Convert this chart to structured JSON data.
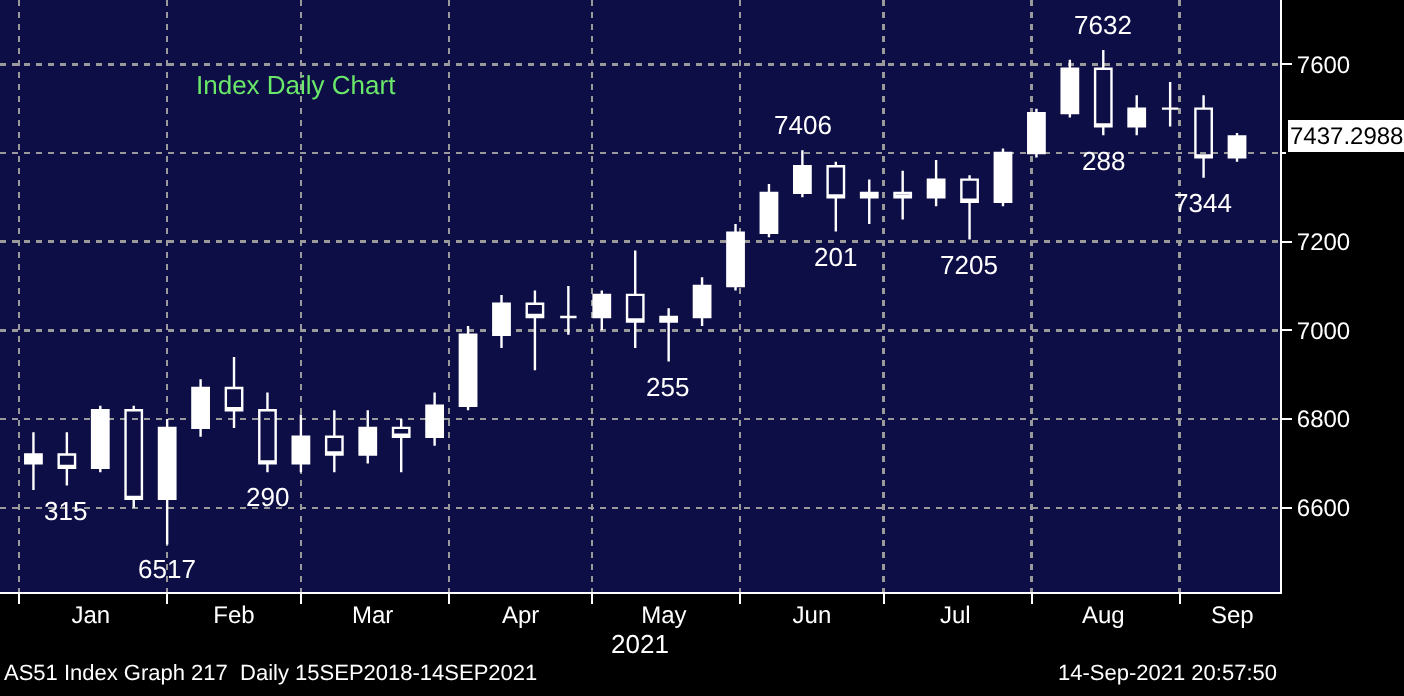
{
  "chart_data": {
    "type": "candlestick",
    "title": "Index Daily Chart",
    "xlabel": "2021",
    "x": [
      "2021-01-04",
      "2021-01-11",
      "2021-01-18",
      "2021-01-25",
      "2021-02-01",
      "2021-02-08",
      "2021-02-15",
      "2021-02-22",
      "2021-03-01",
      "2021-03-08",
      "2021-03-15",
      "2021-03-22",
      "2021-03-29",
      "2021-04-05",
      "2021-04-12",
      "2021-04-19",
      "2021-04-26",
      "2021-05-03",
      "2021-05-10",
      "2021-05-17",
      "2021-05-24",
      "2021-05-31",
      "2021-06-07",
      "2021-06-14",
      "2021-06-21",
      "2021-06-28",
      "2021-07-05",
      "2021-07-12",
      "2021-07-19",
      "2021-07-26",
      "2021-08-02",
      "2021-08-09",
      "2021-08-16",
      "2021-08-23",
      "2021-08-30",
      "2021-09-06",
      "2021-09-13"
    ],
    "ohlc": [
      [
        6700,
        6770,
        6640,
        6720
      ],
      [
        6720,
        6770,
        6650,
        6690
      ],
      [
        6690,
        6830,
        6680,
        6820
      ],
      [
        6820,
        6830,
        6600,
        6620
      ],
      [
        6620,
        6800,
        6517,
        6780
      ],
      [
        6780,
        6890,
        6760,
        6870
      ],
      [
        6870,
        6940,
        6780,
        6820
      ],
      [
        6820,
        6860,
        6680,
        6700
      ],
      [
        6700,
        6810,
        6680,
        6760
      ],
      [
        6760,
        6820,
        6680,
        6720
      ],
      [
        6720,
        6820,
        6700,
        6780
      ],
      [
        6780,
        6800,
        6680,
        6760
      ],
      [
        6760,
        6860,
        6740,
        6830
      ],
      [
        6830,
        7010,
        6820,
        6990
      ],
      [
        6990,
        7080,
        6960,
        7060
      ],
      [
        7060,
        7090,
        6910,
        7030
      ],
      [
        7030,
        7100,
        6990,
        7030
      ],
      [
        7030,
        7090,
        7000,
        7080
      ],
      [
        7080,
        7180,
        6960,
        7020
      ],
      [
        7020,
        7050,
        6930,
        7030
      ],
      [
        7030,
        7120,
        7010,
        7100
      ],
      [
        7100,
        7240,
        7090,
        7220
      ],
      [
        7220,
        7330,
        7210,
        7310
      ],
      [
        7310,
        7406,
        7300,
        7370
      ],
      [
        7370,
        7380,
        7223,
        7300
      ],
      [
        7300,
        7340,
        7240,
        7310
      ],
      [
        7310,
        7360,
        7250,
        7300
      ],
      [
        7300,
        7384,
        7280,
        7340
      ],
      [
        7340,
        7350,
        7205,
        7290
      ],
      [
        7290,
        7410,
        7280,
        7400
      ],
      [
        7400,
        7500,
        7390,
        7490
      ],
      [
        7490,
        7610,
        7480,
        7590
      ],
      [
        7590,
        7632,
        7440,
        7460
      ],
      [
        7460,
        7530,
        7440,
        7500
      ],
      [
        7500,
        7560,
        7460,
        7500
      ],
      [
        7500,
        7530,
        7344,
        7390
      ],
      [
        7390,
        7445,
        7380,
        7437.2988
      ]
    ],
    "color": "#ffffff",
    "xlim": [
      "2020-12-28",
      "2021-09-22"
    ],
    "xticks": [
      {
        "value": "2021-01-01",
        "label": null
      },
      {
        "value": "2021-02-01",
        "label": null
      },
      {
        "value": "2021-03-01",
        "label": null
      },
      {
        "value": "2021-04-01",
        "label": null
      },
      {
        "value": "2021-05-01",
        "label": null
      },
      {
        "value": "2021-06-01",
        "label": null
      },
      {
        "value": "2021-07-01",
        "label": null
      },
      {
        "value": "2021-08-01",
        "label": null
      },
      {
        "value": "2021-09-01",
        "label": null
      },
      {
        "value": "2021-01-16",
        "label": "Jan"
      },
      {
        "value": "2021-02-15",
        "label": "Feb"
      },
      {
        "value": "2021-03-16",
        "label": "Mar"
      },
      {
        "value": "2021-04-16",
        "label": "Apr"
      },
      {
        "value": "2021-05-16",
        "label": "May"
      },
      {
        "value": "2021-06-16",
        "label": "Jun"
      },
      {
        "value": "2021-07-16",
        "label": "Jul"
      },
      {
        "value": "2021-08-16",
        "label": "Aug"
      },
      {
        "value": "2021-09-12",
        "label": "Sep"
      }
    ],
    "ylim": [
      6410,
      7745
    ],
    "yticks": [
      6600,
      6800,
      7000,
      7200,
      {
        "value": 7400,
        "label": null
      },
      7600
    ],
    "grid": true,
    "annotations": [
      {
        "text": "315",
        "x": "2021-01-11",
        "y": 6650
      },
      {
        "text": "6517",
        "x": "2021-02-01",
        "y": 6517
      },
      {
        "text": "290",
        "x": "2021-02-22",
        "y": 6680
      },
      {
        "text": "255",
        "x": "2021-05-17",
        "y": 6930
      },
      {
        "text": "7406",
        "x": "2021-06-14",
        "y": 7406
      },
      {
        "text": "201",
        "x": "2021-06-21",
        "y": 7223
      },
      {
        "text": "7205",
        "x": "2021-07-19",
        "y": 7205
      },
      {
        "text": "7632",
        "x": "2021-08-16",
        "y": 7632
      },
      {
        "text": "288",
        "x": "2021-08-16",
        "y": 7440
      },
      {
        "text": "7344",
        "x": "2021-09-06",
        "y": 7344
      },
      {
        "text": "7437.2988",
        "x": "2021-09-13",
        "y": 7437.2988
      },
      "AS51 Index Graph 217  Daily 15SEP2018-14SEP2021",
      "14-Sep-2021 20:57:50"
    ]
  }
}
